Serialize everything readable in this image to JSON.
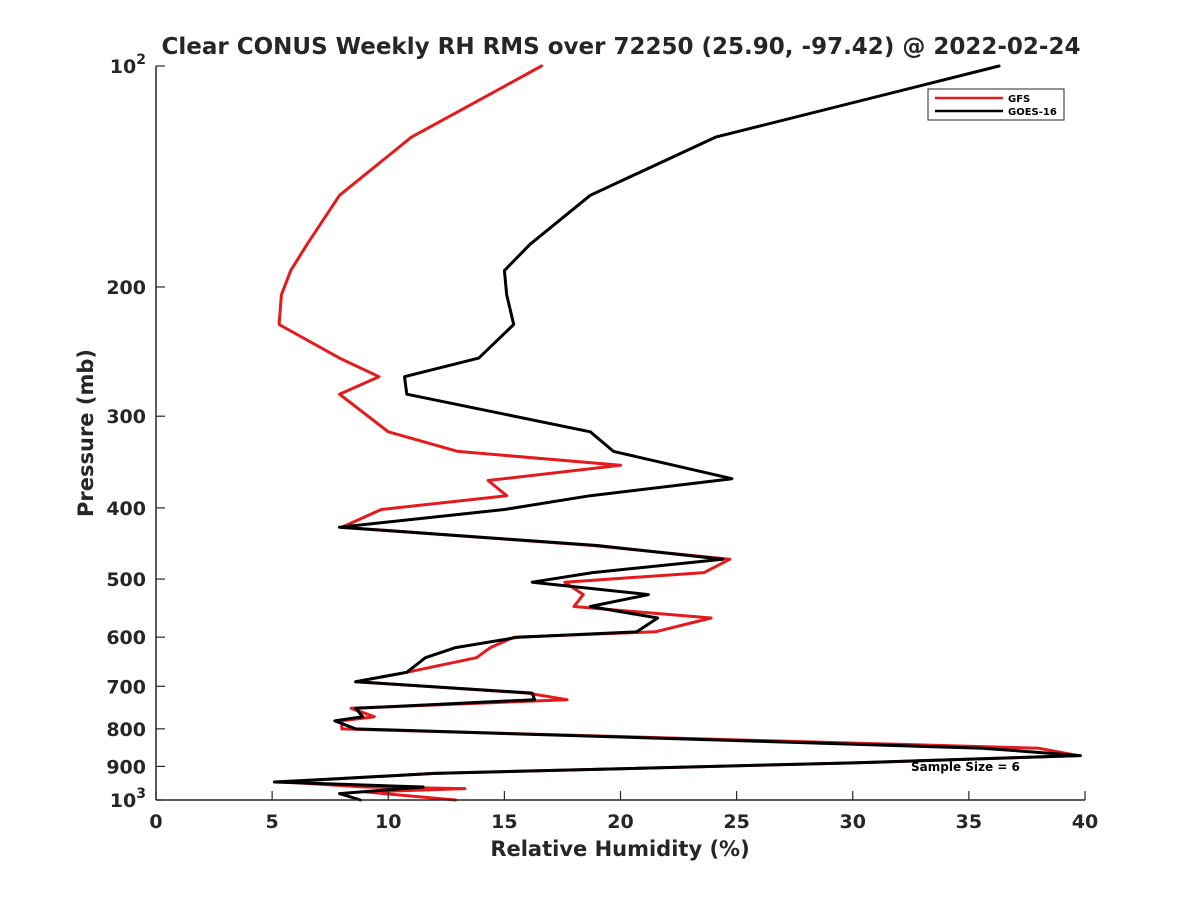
{
  "chart_data": {
    "type": "line",
    "title": "Clear CONUS Weekly RH RMS over 72250 (25.90, -97.42) @ 2022-02-24",
    "xlabel": "Relative Humidity (%)",
    "ylabel": "Pressure (mb)",
    "xlim": [
      0,
      40
    ],
    "ylim": [
      100,
      1000
    ],
    "y_scale": "log",
    "y_reversed": true,
    "grid": false,
    "legend_position": "top-right",
    "x_ticks": [
      0,
      5,
      10,
      15,
      20,
      25,
      30,
      35,
      40
    ],
    "x_tick_labels": [
      "0",
      "5",
      "10",
      "15",
      "20",
      "25",
      "30",
      "35",
      "40"
    ],
    "y_ticks": [
      100,
      200,
      300,
      400,
      500,
      600,
      700,
      800,
      900,
      1000
    ],
    "y_tick_labels": [
      {
        "base": "10",
        "exp": "2"
      },
      {
        "base": "200",
        "exp": ""
      },
      {
        "base": "300",
        "exp": ""
      },
      {
        "base": "400",
        "exp": ""
      },
      {
        "base": "500",
        "exp": ""
      },
      {
        "base": "600",
        "exp": ""
      },
      {
        "base": "700",
        "exp": ""
      },
      {
        "base": "800",
        "exp": ""
      },
      {
        "base": "900",
        "exp": ""
      },
      {
        "base": "10",
        "exp": "3"
      }
    ],
    "annotation": "Sample Size = 6",
    "series": [
      {
        "name": "GFS",
        "color": "#e41a1c",
        "points": [
          [
            16.6,
            100
          ],
          [
            11.0,
            125
          ],
          [
            7.9,
            150
          ],
          [
            6.5,
            175
          ],
          [
            5.8,
            190
          ],
          [
            5.4,
            205
          ],
          [
            5.3,
            225
          ],
          [
            7.9,
            250
          ],
          [
            9.6,
            265
          ],
          [
            7.9,
            280
          ],
          [
            10.0,
            315
          ],
          [
            13.0,
            335
          ],
          [
            20.0,
            350
          ],
          [
            14.3,
            367
          ],
          [
            15.1,
            385
          ],
          [
            9.7,
            402
          ],
          [
            8.0,
            425
          ],
          [
            18.8,
            450
          ],
          [
            24.7,
            470
          ],
          [
            23.6,
            490
          ],
          [
            17.6,
            505
          ],
          [
            18.4,
            525
          ],
          [
            18.0,
            545
          ],
          [
            23.9,
            565
          ],
          [
            21.5,
            590
          ],
          [
            15.4,
            600
          ],
          [
            14.4,
            620
          ],
          [
            13.8,
            640
          ],
          [
            10.8,
            670
          ],
          [
            8.6,
            690
          ],
          [
            16.0,
            715
          ],
          [
            17.7,
            730
          ],
          [
            8.4,
            750
          ],
          [
            9.4,
            770
          ],
          [
            8.0,
            780
          ],
          [
            8.0,
            800
          ],
          [
            38.0,
            850
          ],
          [
            39.7,
            870
          ],
          [
            30.0,
            890
          ],
          [
            12.0,
            920
          ],
          [
            7.9,
            935
          ],
          [
            5.5,
            945
          ],
          [
            9.0,
            960
          ],
          [
            13.3,
            965
          ],
          [
            9.0,
            975
          ],
          [
            12.9,
            1000
          ]
        ]
      },
      {
        "name": "GOES-16",
        "color": "#000000",
        "points": [
          [
            36.3,
            100
          ],
          [
            24.1,
            125
          ],
          [
            18.7,
            150
          ],
          [
            16.1,
            175
          ],
          [
            15.0,
            190
          ],
          [
            15.1,
            205
          ],
          [
            15.4,
            225
          ],
          [
            13.9,
            250
          ],
          [
            10.7,
            265
          ],
          [
            10.8,
            280
          ],
          [
            18.7,
            315
          ],
          [
            19.7,
            335
          ],
          [
            24.8,
            365
          ],
          [
            18.7,
            385
          ],
          [
            15.0,
            402
          ],
          [
            7.9,
            425
          ],
          [
            19.0,
            450
          ],
          [
            24.4,
            470
          ],
          [
            18.8,
            490
          ],
          [
            16.2,
            505
          ],
          [
            21.2,
            525
          ],
          [
            18.7,
            545
          ],
          [
            21.6,
            565
          ],
          [
            20.7,
            590
          ],
          [
            15.6,
            600
          ],
          [
            12.9,
            620
          ],
          [
            11.6,
            640
          ],
          [
            10.8,
            670
          ],
          [
            8.6,
            690
          ],
          [
            16.2,
            715
          ],
          [
            16.3,
            730
          ],
          [
            8.6,
            750
          ],
          [
            8.9,
            770
          ],
          [
            7.7,
            780
          ],
          [
            8.6,
            800
          ],
          [
            35.6,
            850
          ],
          [
            39.8,
            870
          ],
          [
            30.0,
            890
          ],
          [
            12.0,
            920
          ],
          [
            7.9,
            935
          ],
          [
            5.1,
            945
          ],
          [
            11.5,
            960
          ],
          [
            7.9,
            980
          ],
          [
            8.8,
            1000
          ]
        ]
      }
    ]
  }
}
